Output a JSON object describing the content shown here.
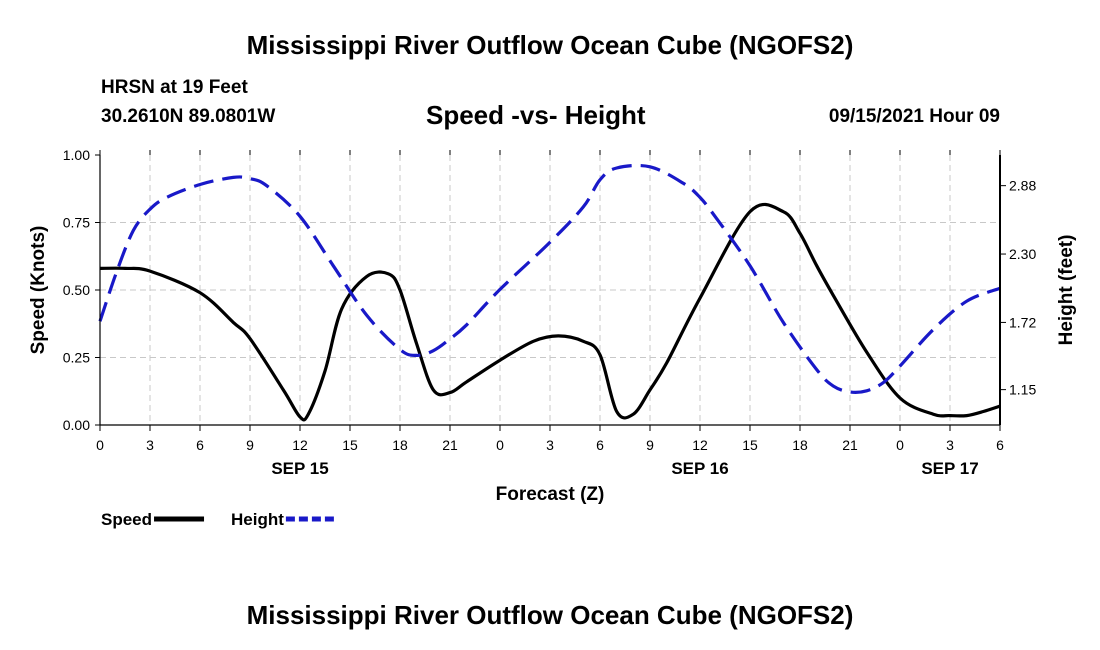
{
  "header": {
    "title": "Mississippi River Outflow Ocean Cube (NGOFS2)",
    "station": "HRSN at 19 Feet",
    "coords": "30.2610N  89.0801W",
    "datetime": "09/15/2021 Hour 09"
  },
  "footer": {
    "title": "Mississippi River Outflow Ocean Cube (NGOFS2)"
  },
  "chart_data": {
    "type": "line",
    "title": "Speed -vs- Height",
    "xlabel": "Forecast (Z)",
    "ylabel": "Speed (Knots)",
    "y2label": "Height (feet)",
    "xlim": [
      0,
      54
    ],
    "ylim": [
      0,
      1
    ],
    "y2lim": [
      0.85,
      3.14
    ],
    "x_ticks": [
      0,
      3,
      6,
      9,
      12,
      15,
      18,
      21,
      24,
      27,
      30,
      33,
      36,
      39,
      42,
      45,
      48,
      51,
      54
    ],
    "x_tick_labels": [
      "0",
      "3",
      "6",
      "9",
      "12",
      "15",
      "18",
      "21",
      "0",
      "3",
      "6",
      "9",
      "12",
      "15",
      "18",
      "21",
      "0",
      "3",
      "6"
    ],
    "y_ticks": [
      0,
      0.25,
      0.5,
      0.75,
      1.0
    ],
    "y_tick_labels": [
      "0.00",
      "0.25",
      "0.50",
      "0.75",
      "1.00"
    ],
    "y2_ticks": [
      1.15,
      1.72,
      2.3,
      2.88
    ],
    "y2_tick_labels": [
      "1.15",
      "1.72",
      "2.30",
      "2.88"
    ],
    "date_labels": [
      {
        "x": 12,
        "label": "SEP 15"
      },
      {
        "x": 36,
        "label": "SEP 16"
      },
      {
        "x": 51,
        "label": "SEP 17"
      }
    ],
    "grid": true,
    "series": [
      {
        "name": "Speed",
        "axis": "left",
        "color": "#000000",
        "style": "solid",
        "x": [
          0,
          1.5,
          3,
          6,
          8,
          9,
          11,
          12,
          12.5,
          13.5,
          14.5,
          16,
          17.3,
          18,
          19,
          20,
          21,
          22,
          24,
          26,
          27.5,
          29,
          30,
          31,
          32,
          33,
          34,
          36,
          39,
          41,
          42,
          43,
          44,
          46,
          48,
          50,
          51,
          52,
          53,
          54
        ],
        "values": [
          0.58,
          0.58,
          0.57,
          0.49,
          0.38,
          0.32,
          0.13,
          0.03,
          0.04,
          0.2,
          0.43,
          0.55,
          0.56,
          0.5,
          0.3,
          0.13,
          0.12,
          0.16,
          0.24,
          0.31,
          0.33,
          0.31,
          0.26,
          0.05,
          0.04,
          0.13,
          0.23,
          0.47,
          0.79,
          0.79,
          0.71,
          0.59,
          0.48,
          0.27,
          0.1,
          0.04,
          0.035,
          0.035,
          0.05,
          0.07
        ]
      },
      {
        "name": "Height",
        "axis": "right",
        "color": "#1919c8",
        "style": "dashed",
        "x": [
          0,
          1,
          2,
          3,
          4,
          6,
          8,
          9,
          10,
          12,
          14,
          16,
          18,
          19,
          20,
          21,
          22,
          24,
          27,
          29,
          30,
          31,
          33,
          35,
          36,
          37,
          39,
          41,
          43,
          44,
          45,
          46,
          47,
          48,
          50,
          52,
          54
        ],
        "values": [
          1.73,
          2.15,
          2.5,
          2.68,
          2.78,
          2.89,
          2.95,
          2.94,
          2.88,
          2.62,
          2.2,
          1.78,
          1.49,
          1.44,
          1.48,
          1.58,
          1.7,
          2.0,
          2.4,
          2.7,
          2.93,
          3.03,
          3.04,
          2.9,
          2.78,
          2.6,
          2.2,
          1.72,
          1.32,
          1.18,
          1.13,
          1.14,
          1.21,
          1.35,
          1.66,
          1.9,
          2.01
        ]
      }
    ],
    "legend": [
      {
        "label": "Speed",
        "color": "#000000",
        "style": "solid"
      },
      {
        "label": "Height",
        "color": "#1919c8",
        "style": "dashed"
      }
    ]
  }
}
